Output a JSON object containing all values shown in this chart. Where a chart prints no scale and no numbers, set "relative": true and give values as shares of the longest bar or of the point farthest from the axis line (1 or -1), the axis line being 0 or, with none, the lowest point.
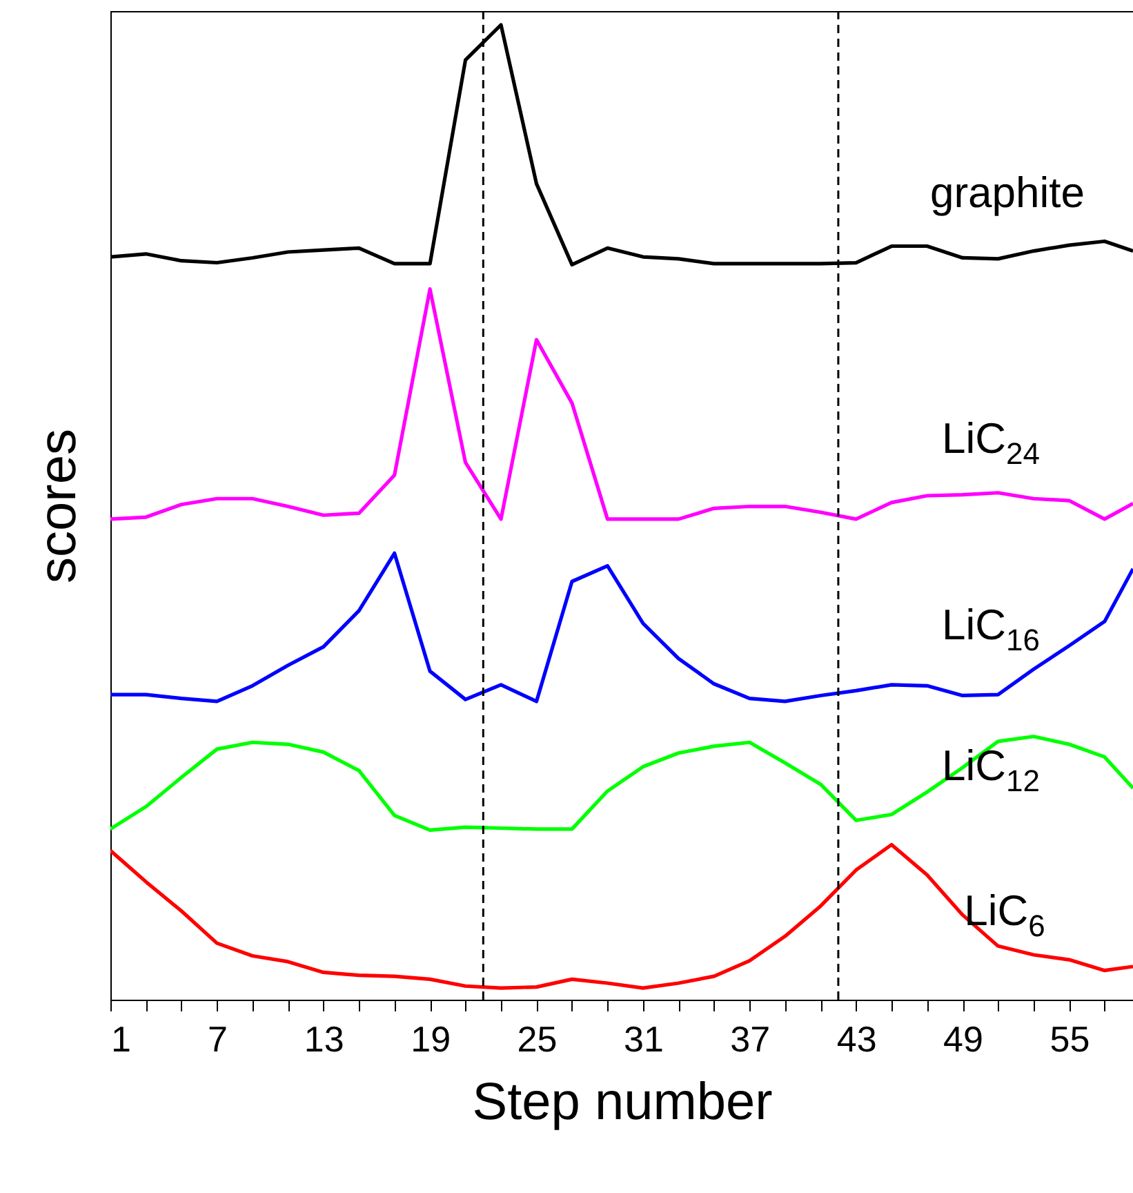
{
  "chart_data": {
    "type": "line",
    "xlabel": "Step number",
    "ylabel": "scores",
    "relative": true,
    "legend": false,
    "marker": "none",
    "line_style": "solid",
    "grid": false,
    "x": [
      1,
      3,
      5,
      7,
      9,
      11,
      13,
      15,
      17,
      19,
      21,
      23,
      25,
      27,
      29,
      31,
      33,
      35,
      37,
      39,
      41,
      43,
      45,
      47,
      49,
      51,
      53,
      55,
      57,
      58.6
    ],
    "xlim": [
      1,
      58.6
    ],
    "xticks": [
      1,
      {
        "value": 3,
        "label": null
      },
      {
        "value": 5,
        "label": null
      },
      7,
      {
        "value": 9,
        "label": null
      },
      {
        "value": 11,
        "label": null
      },
      13,
      {
        "value": 15,
        "label": null
      },
      {
        "value": 17,
        "label": null
      },
      19,
      {
        "value": 21,
        "label": null
      },
      {
        "value": 23,
        "label": null
      },
      25,
      {
        "value": 27,
        "label": null
      },
      {
        "value": 29,
        "label": null
      },
      31,
      {
        "value": 33,
        "label": null
      },
      {
        "value": 35,
        "label": null
      },
      37,
      {
        "value": 39,
        "label": null
      },
      {
        "value": 41,
        "label": null
      },
      43,
      {
        "value": 45,
        "label": null
      },
      {
        "value": 47,
        "label": null
      },
      49,
      {
        "value": 51,
        "label": null
      },
      {
        "value": 53,
        "label": null
      },
      55,
      {
        "value": 57,
        "label": null
      }
    ],
    "ref_lines": [
      {
        "axis": "x",
        "value": 22,
        "color": "#000000",
        "line_style": "dashed"
      },
      {
        "axis": "x",
        "value": 42,
        "color": "#000000",
        "line_style": "dashed"
      }
    ],
    "series": [
      {
        "name": "graphite",
        "color": "#000000",
        "values": [
          0.762,
          0.765,
          0.758,
          0.756,
          0.761,
          0.767,
          0.769,
          0.771,
          0.755,
          0.755,
          0.964,
          1.0,
          0.837,
          0.754,
          0.771,
          0.762,
          0.76,
          0.755,
          0.755,
          0.755,
          0.755,
          0.756,
          0.773,
          0.773,
          0.761,
          0.76,
          0.768,
          0.774,
          0.778,
          0.768
        ]
      },
      {
        "name": "LiC$_{24}$",
        "color": "#ff00ff",
        "values": [
          0.493,
          0.495,
          0.508,
          0.514,
          0.514,
          0.506,
          0.497,
          0.499,
          0.538,
          0.729,
          0.551,
          0.493,
          0.677,
          0.612,
          0.493,
          0.493,
          0.493,
          0.504,
          0.506,
          0.506,
          0.5,
          0.493,
          0.51,
          0.517,
          0.518,
          0.52,
          0.514,
          0.512,
          0.493,
          0.509
        ]
      },
      {
        "name": "LiC$_{16}$",
        "color": "#0000ff",
        "values": [
          0.313,
          0.313,
          0.309,
          0.306,
          0.322,
          0.343,
          0.362,
          0.399,
          0.458,
          0.337,
          0.308,
          0.323,
          0.306,
          0.429,
          0.445,
          0.386,
          0.35,
          0.324,
          0.309,
          0.306,
          0.312,
          0.317,
          0.323,
          0.322,
          0.312,
          0.313,
          0.339,
          0.363,
          0.388,
          0.442
        ]
      },
      {
        "name": "LiC$_{12}$",
        "color": "#00ff00",
        "values": [
          0.175,
          0.198,
          0.228,
          0.257,
          0.264,
          0.262,
          0.254,
          0.235,
          0.189,
          0.174,
          0.177,
          0.176,
          0.175,
          0.175,
          0.214,
          0.239,
          0.253,
          0.26,
          0.264,
          0.243,
          0.221,
          0.184,
          0.19,
          0.213,
          0.238,
          0.265,
          0.27,
          0.262,
          0.249,
          0.217
        ]
      },
      {
        "name": "LiC$_{6}$",
        "color": "#ff0000",
        "values": [
          0.153,
          0.121,
          0.091,
          0.058,
          0.045,
          0.039,
          0.028,
          0.025,
          0.024,
          0.021,
          0.014,
          0.012,
          0.013,
          0.021,
          0.017,
          0.012,
          0.017,
          0.024,
          0.04,
          0.065,
          0.096,
          0.133,
          0.159,
          0.128,
          0.087,
          0.055,
          0.046,
          0.041,
          0.03,
          0.034
        ]
      }
    ]
  }
}
